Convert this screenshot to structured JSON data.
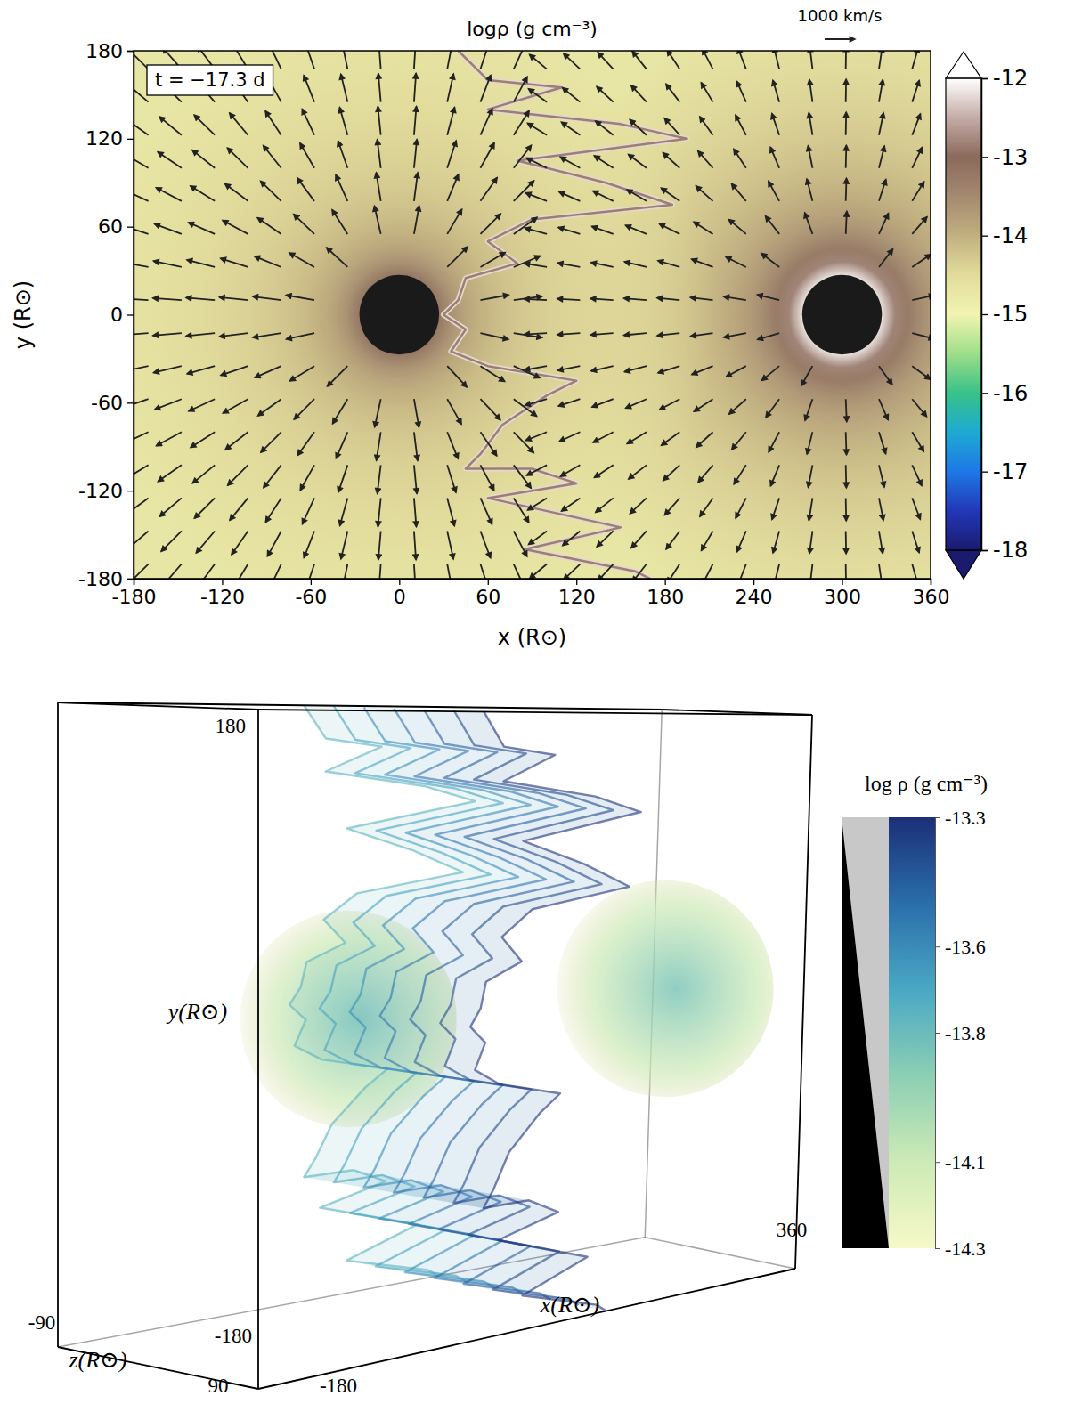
{
  "chart_data": [
    {
      "type": "density_map",
      "title": "logρ (g cm⁻³)",
      "x_label": "x (R⊙)",
      "y_label": "y (R⊙)",
      "annotation": "t = −17.3 d",
      "xlim": [
        -180,
        360
      ],
      "ylim": [
        -180,
        180
      ],
      "xticks": [
        -180,
        -120,
        -60,
        0,
        60,
        120,
        180,
        240,
        300,
        360
      ],
      "yticks": [
        -180,
        -120,
        -60,
        0,
        60,
        120,
        180
      ],
      "ambient_logrho": -14.7,
      "stars": [
        {
          "x": 0,
          "y": 0,
          "radius": 27,
          "surface_logrho": -13.2,
          "wind_speed": 950
        },
        {
          "x": 300,
          "y": 0,
          "radius": 27,
          "surface_logrho": -12.2,
          "wind_speed": 750
        }
      ],
      "reference_arrow": {
        "value": 1000,
        "label": "1000 km/s"
      },
      "shock_front": {
        "x": [
          40,
          60,
          110,
          60,
          150,
          195,
          80,
          140,
          185,
          90,
          60,
          80,
          45,
          40,
          30,
          45,
          35,
          60,
          120,
          100,
          70,
          55,
          45,
          90,
          120,
          60,
          150,
          85,
          160,
          170
        ],
        "y": [
          180,
          160,
          155,
          140,
          130,
          120,
          105,
          90,
          75,
          65,
          50,
          35,
          25,
          10,
          0,
          -10,
          -25,
          -35,
          -45,
          -55,
          -75,
          -95,
          -105,
          -105,
          -115,
          -125,
          -145,
          -160,
          -175,
          -180
        ]
      },
      "colorbar": {
        "range": [
          -18,
          -12
        ],
        "ticks": [
          -12,
          -13,
          -14,
          -15,
          -16,
          -17,
          -18
        ],
        "colors": [
          "#1a1a6e",
          "#2238b8",
          "#1e78e6",
          "#1eaad2",
          "#38c288",
          "#9ede8a",
          "#f2f4b0",
          "#e2dc9c",
          "#c2b080",
          "#a48a70",
          "#8a6a5c",
          "#c4aca6",
          "#ffffff"
        ]
      }
    },
    {
      "type": "volume_render",
      "x_label": "x(R⊙)",
      "y_label": "y(R⊙)",
      "z_label": "z(R⊙)",
      "xlim": [
        -180,
        360
      ],
      "ylim": [
        -180,
        180
      ],
      "zlim": [
        -90,
        90
      ],
      "xticks": [
        -180,
        360
      ],
      "yticks": [
        -180,
        180
      ],
      "zticks": [
        -90,
        90
      ],
      "colorbar": {
        "label": "log ρ (g cm⁻³)",
        "range": [
          -14.3,
          -13.3
        ],
        "ticks": [
          -13.3,
          -13.6,
          -13.8,
          -14.1,
          -14.3
        ],
        "colors": [
          "#f6f9c8",
          "#cdeab6",
          "#8ccfb4",
          "#4aa8c4",
          "#2a6eaa",
          "#1c2f78"
        ]
      }
    }
  ]
}
